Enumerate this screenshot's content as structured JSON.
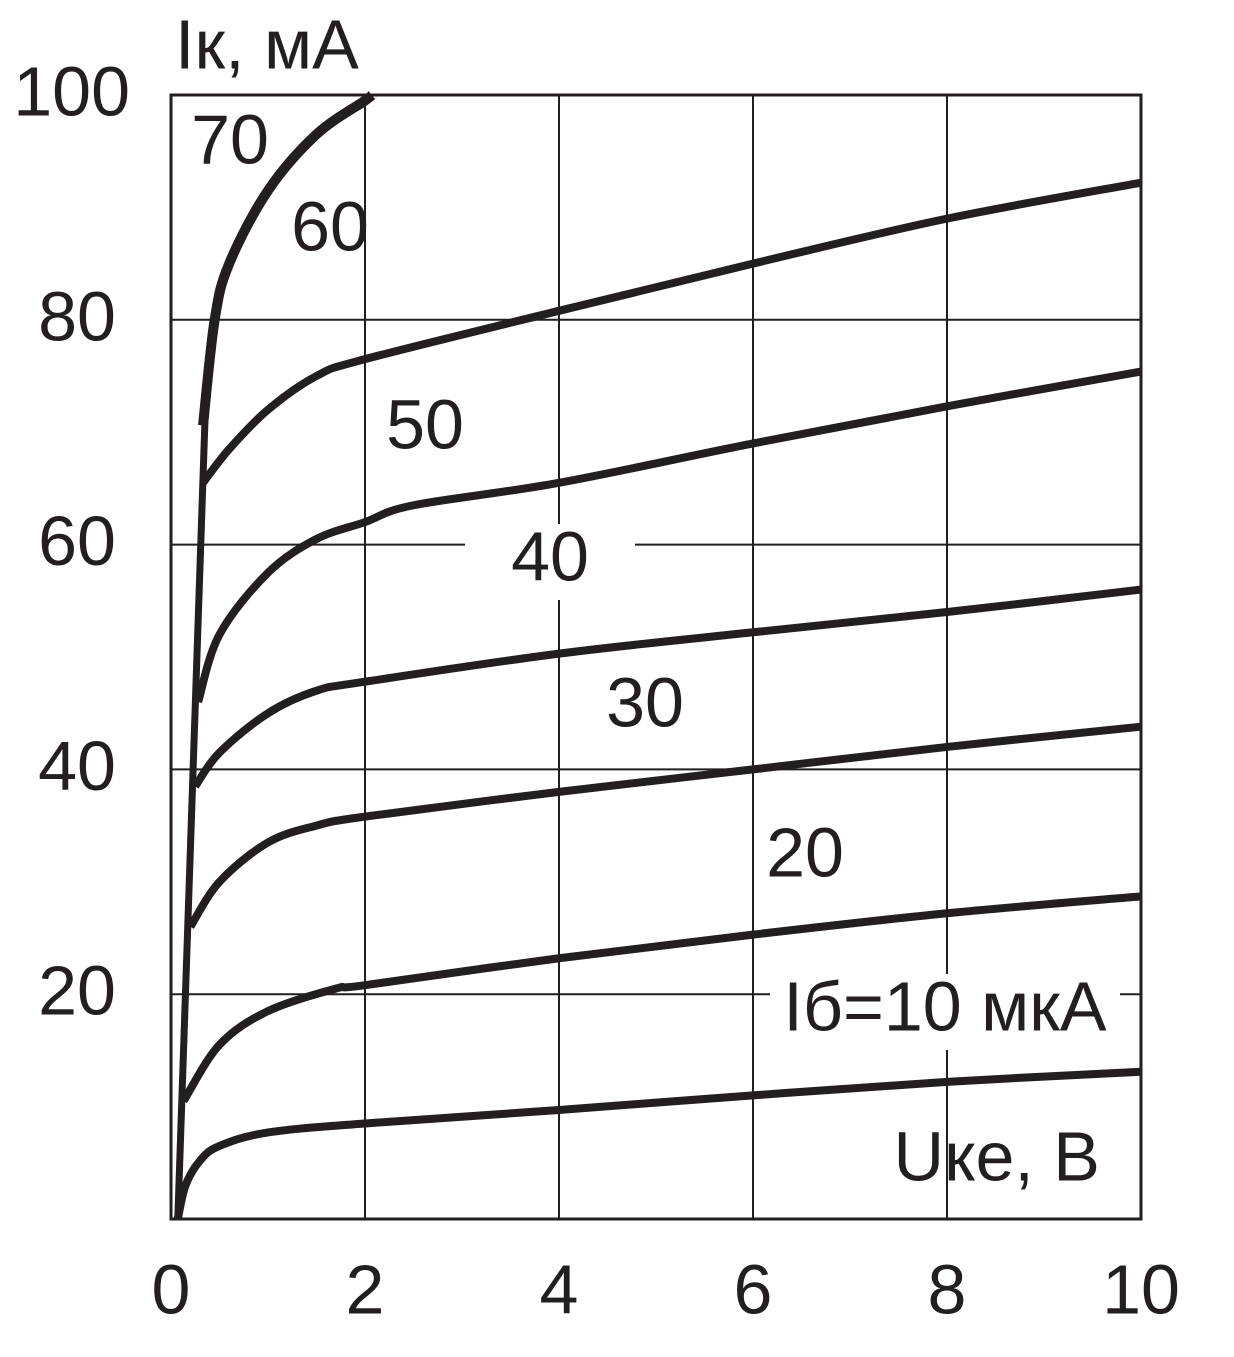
{
  "chart_data": {
    "type": "line",
    "xlabel": "Uке, В",
    "ylabel": "Iк, мА",
    "xlim": [
      0,
      10
    ],
    "ylim": [
      0,
      100
    ],
    "xticks": [
      0,
      2,
      4,
      6,
      8,
      10
    ],
    "yticks": [
      20,
      40,
      60,
      80,
      100
    ],
    "grid": true,
    "color": "#231f20",
    "series": [
      {
        "name": "Iб=10 мкА",
        "x": [
          0.07,
          0.15,
          0.3,
          0.5,
          1,
          2,
          4,
          6,
          8,
          10
        ],
        "values": [
          0,
          3,
          5.2,
          6.5,
          7.7,
          8.5,
          9.7,
          11,
          12.2,
          13.1
        ]
      },
      {
        "name": "20",
        "x": [
          0.13,
          0.5,
          1,
          1.7,
          2,
          4,
          6,
          8,
          10
        ],
        "values": [
          10.5,
          15.5,
          18.5,
          20.5,
          20.8,
          23.2,
          25.3,
          27.2,
          28.7
        ]
      },
      {
        "name": "30",
        "x": [
          0.2,
          0.5,
          1,
          1.5,
          2,
          4,
          6,
          8,
          10
        ],
        "values": [
          26,
          30,
          33.5,
          35,
          35.8,
          38,
          40,
          42,
          43.8
        ]
      },
      {
        "name": "40",
        "x": [
          0.25,
          0.5,
          1,
          1.5,
          2,
          4,
          6,
          8,
          10
        ],
        "values": [
          38.5,
          41.5,
          45,
          47,
          47.8,
          50.3,
          52.2,
          54,
          56
        ]
      },
      {
        "name": "50",
        "x": [
          0.28,
          0.5,
          1,
          1.5,
          2,
          2.5,
          4,
          6,
          8,
          10
        ],
        "values": [
          46,
          52,
          57.5,
          60.5,
          62,
          63.5,
          65.5,
          69,
          72.3,
          75.4
        ]
      },
      {
        "name": "60",
        "x": [
          0.33,
          0.6,
          1,
          1.5,
          2,
          4,
          6,
          8,
          10
        ],
        "values": [
          65.5,
          68.5,
          72,
          75,
          76.5,
          80.8,
          85,
          89,
          92.2
        ]
      },
      {
        "name": "70",
        "x": [
          0.33,
          0.45,
          0.6,
          1,
          1.5,
          2,
          2.07
        ],
        "values": [
          70.6,
          80,
          85,
          91.5,
          96.5,
          99.5,
          100
        ]
      },
      {
        "x": [
          0.07,
          0.35
        ],
        "values": [
          0,
          71
        ]
      }
    ]
  }
}
